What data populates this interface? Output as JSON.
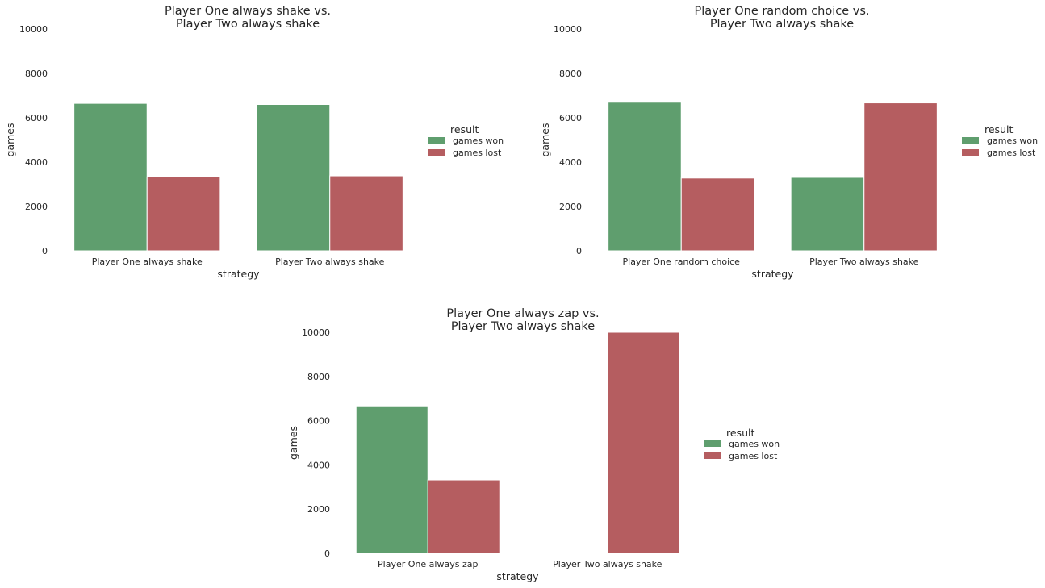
{
  "colors": {
    "games won": "#5f9e6e",
    "games lost": "#b55d60"
  },
  "chart_data": [
    {
      "type": "bar",
      "title_lines": [
        "Player One always shake vs.",
        "Player Two always shake"
      ],
      "categories": [
        "Player One always shake",
        "Player Two always shake"
      ],
      "series": [
        {
          "name": "games won",
          "values": [
            6650,
            6600
          ]
        },
        {
          "name": "games lost",
          "values": [
            3330,
            3380
          ]
        }
      ],
      "xlabel": "strategy",
      "ylabel": "games",
      "ylim": [
        0,
        10000
      ],
      "yticks": [
        "0",
        "2000",
        "4000",
        "6000",
        "8000",
        "10000"
      ],
      "legend_title": "result",
      "legend_placement": "center-right",
      "grid": false
    },
    {
      "type": "bar",
      "title_lines": [
        "Player One random choice vs.",
        "Player Two always shake"
      ],
      "categories": [
        "Player One random choice",
        "Player Two always shake"
      ],
      "series": [
        {
          "name": "games won",
          "values": [
            6700,
            3310
          ]
        },
        {
          "name": "games lost",
          "values": [
            3280,
            6670
          ]
        }
      ],
      "xlabel": "strategy",
      "ylabel": "games",
      "ylim": [
        0,
        10000
      ],
      "yticks": [
        "0",
        "2000",
        "4000",
        "6000",
        "8000",
        "10000"
      ],
      "legend_title": "result",
      "legend_placement": "center-right",
      "grid": false
    },
    {
      "type": "bar",
      "title_lines": [
        "Player One always zap vs.",
        "Player Two always shake"
      ],
      "categories": [
        "Player One always zap",
        "Player Two always shake"
      ],
      "series": [
        {
          "name": "games won",
          "values": [
            6670,
            0
          ]
        },
        {
          "name": "games lost",
          "values": [
            3320,
            10000
          ]
        }
      ],
      "xlabel": "strategy",
      "ylabel": "games",
      "ylim": [
        0,
        10000
      ],
      "yticks": [
        "0",
        "2000",
        "4000",
        "6000",
        "8000",
        "10000"
      ],
      "legend_title": "result",
      "legend_placement": "center-right",
      "grid": false
    }
  ]
}
